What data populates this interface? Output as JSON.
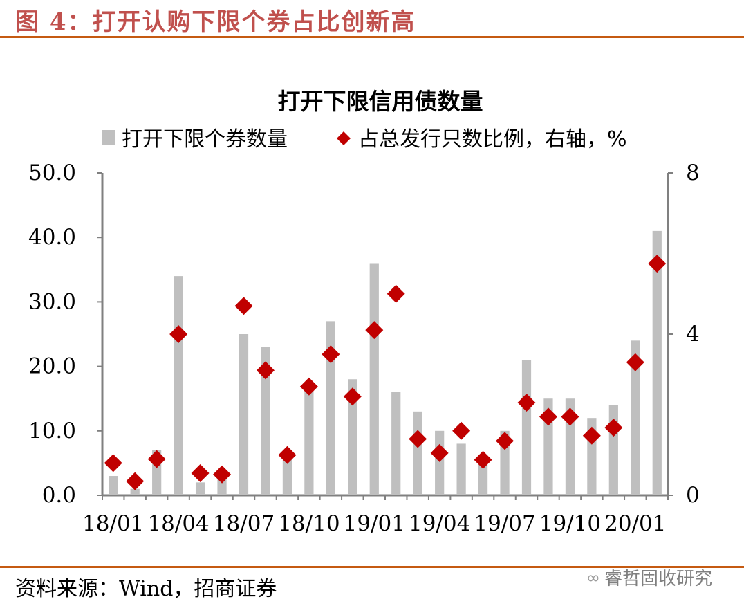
{
  "figure": {
    "title": "图 4：打开认购下限个券占比创新高",
    "source": "资料来源：Wind，招商证券",
    "watermark": "睿哲固收研究"
  },
  "colors": {
    "title": "#c0504d",
    "rule": "#c55a11",
    "bar": "#bfbfbf",
    "marker": "#c00000",
    "axis": "#808080"
  },
  "chart_data": {
    "type": "bar",
    "title": "打开下限信用债数量",
    "categories": [
      "18/01",
      "18/02",
      "18/03",
      "18/04",
      "18/05",
      "18/06",
      "18/07",
      "18/08",
      "18/09",
      "18/10",
      "18/11",
      "18/12",
      "19/01",
      "19/02",
      "19/03",
      "19/04",
      "19/05",
      "19/06",
      "19/07",
      "19/08",
      "19/09",
      "19/10",
      "19/11",
      "19/12",
      "20/01",
      "20/02"
    ],
    "x_tick_labels": [
      "18/01",
      "18/04",
      "18/07",
      "18/10",
      "19/01",
      "19/04",
      "19/07",
      "19/10",
      "20/01"
    ],
    "series": [
      {
        "name": "打开下限个券数量",
        "type": "bar",
        "axis": "left",
        "values": [
          3,
          1,
          7,
          34,
          2,
          3,
          25,
          23,
          6,
          17,
          27,
          18,
          36,
          16,
          13,
          10,
          8,
          5,
          10,
          21,
          15,
          15,
          12,
          14,
          24,
          41
        ]
      },
      {
        "name": "占总发行只数比例，右轴，%",
        "type": "scatter",
        "axis": "right",
        "values": [
          0.8,
          0.35,
          0.9,
          4.0,
          0.55,
          0.52,
          4.7,
          3.1,
          1.0,
          2.7,
          3.5,
          2.45,
          4.1,
          5.0,
          1.4,
          1.05,
          1.6,
          0.88,
          1.35,
          2.3,
          1.95,
          1.95,
          1.48,
          1.68,
          3.3,
          5.75
        ]
      }
    ],
    "left_axis": {
      "range": [
        0,
        50
      ],
      "tick_labels": [
        "0.0",
        "10.0",
        "20.0",
        "30.0",
        "40.0",
        "50.0"
      ]
    },
    "right_axis": {
      "range": [
        0,
        8
      ],
      "tick_labels": [
        "0",
        "4",
        "8"
      ]
    },
    "legend_position": "top",
    "grid": false
  }
}
